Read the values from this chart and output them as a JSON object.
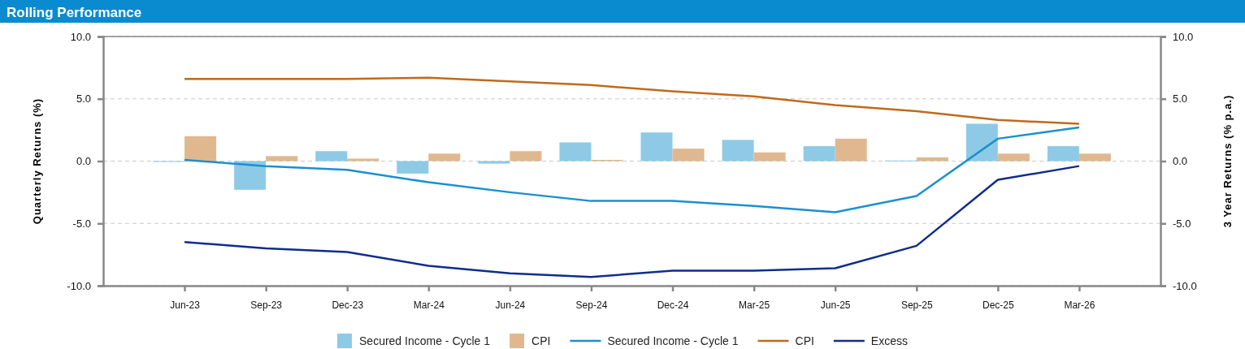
{
  "chart_data": {
    "type": "bar",
    "title": "Rolling Performance",
    "ylabel": "Quarterly Returns (%)",
    "y2label": "3 Year Returns (% p.a.)",
    "categories": [
      "Jun-23",
      "Sep-23",
      "Dec-23",
      "Mar-24",
      "Jun-24",
      "Sep-24",
      "Dec-24",
      "Mar-25",
      "Jun-25",
      "Sep-25",
      "Dec-25",
      "Mar-26"
    ],
    "series": [
      {
        "name": "Secured Income - Cycle 1",
        "color": "#8ecae6",
        "values": [
          0.0,
          -2.3,
          0.8,
          -1.0,
          -0.2,
          1.5,
          2.3,
          1.7,
          1.2,
          0.05,
          3.0,
          1.2
        ]
      },
      {
        "name": "CPI",
        "color": "#e0b890",
        "values": [
          2.0,
          0.4,
          0.2,
          0.6,
          0.8,
          0.1,
          1.0,
          0.7,
          1.8,
          0.3,
          0.6,
          0.6
        ]
      },
      {
        "name": "Secured Income - Cycle 1",
        "type": "line",
        "axis": "y2",
        "color": "#1a90d0",
        "values": [
          0.1,
          -0.4,
          -0.7,
          -1.7,
          -2.5,
          -3.2,
          -3.2,
          -3.6,
          -4.1,
          -2.8,
          1.8,
          2.7
        ]
      },
      {
        "name": "CPI",
        "type": "line",
        "axis": "y2",
        "color": "#c06a1a",
        "values": [
          6.6,
          6.6,
          6.6,
          6.7,
          6.4,
          6.1,
          5.6,
          5.2,
          4.5,
          4.0,
          3.3,
          3.0
        ]
      },
      {
        "name": "Excess",
        "type": "line",
        "axis": "y2",
        "color": "#0f2d8c",
        "values": [
          -6.5,
          -7.0,
          -7.3,
          -8.4,
          -9.0,
          -9.3,
          -8.8,
          -8.8,
          -8.6,
          -6.8,
          -1.5,
          -0.4
        ]
      }
    ],
    "ylim": [
      -10,
      10
    ],
    "yticks": [
      {
        "value": -10,
        "label": "-10.0"
      },
      {
        "value": -5,
        "label": "-5.0"
      },
      {
        "value": 0,
        "label": "0.0"
      },
      {
        "value": 5,
        "label": "5.0"
      },
      {
        "value": 10,
        "label": "10.0"
      }
    ],
    "y2lim": [
      -10,
      10
    ],
    "y2ticks": [
      {
        "value": -10,
        "label": "-10.0"
      },
      {
        "value": -5,
        "label": "-5.0"
      },
      {
        "value": 0,
        "label": "0.0"
      },
      {
        "value": 5,
        "label": "5.0"
      },
      {
        "value": 10,
        "label": "10.0"
      }
    ],
    "grid": "y",
    "legend": "bottom",
    "marker": "none",
    "line_style": "solid"
  }
}
